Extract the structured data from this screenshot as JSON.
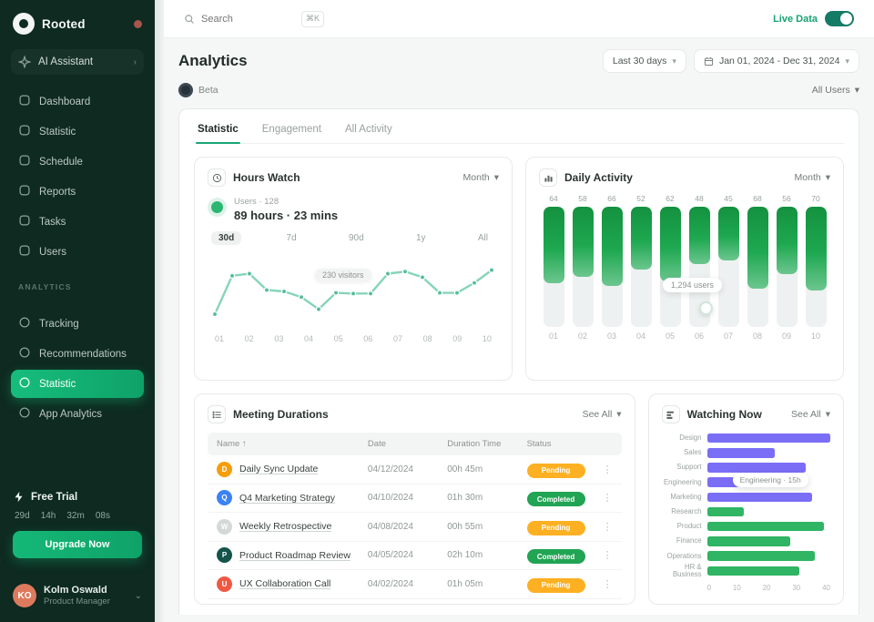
{
  "sidebar": {
    "logo": {
      "text": "Rooted"
    },
    "assistant": {
      "label": "AI Assistant",
      "tail": "›"
    },
    "nav": [
      {
        "label": "Dashboard"
      },
      {
        "label": "Statistic"
      },
      {
        "label": "Schedule"
      },
      {
        "label": "Reports"
      },
      {
        "label": "Tasks"
      },
      {
        "label": "Users"
      }
    ],
    "section_label": "ANALYTICS",
    "analytics_nav": [
      {
        "label": "Tracking",
        "active": false
      },
      {
        "label": "Recommendations",
        "active": false
      },
      {
        "label": "Statistic",
        "active": true
      },
      {
        "label": "App Analytics",
        "active": false
      }
    ],
    "trial": {
      "title": "Free Trial",
      "countdown": [
        "29d",
        "14h",
        "32m",
        "08s"
      ],
      "button": "Upgrade Now"
    },
    "profile": {
      "name": "Kolm Oswald",
      "role": "Product Manager",
      "initials": "KO"
    }
  },
  "topbar": {
    "search_placeholder": "Search",
    "search_shortcut": "⌘K",
    "live_label": "Live Data"
  },
  "header": {
    "title": "Analytics",
    "range_chip": "Last 30 days",
    "date_chip": "Jan 01, 2024 - Dec 31, 2024",
    "beta_chip": "Beta",
    "users_dropdown": "All Users"
  },
  "tabs": [
    {
      "label": "Statistic",
      "active": true
    },
    {
      "label": "Engagement",
      "active": false
    },
    {
      "label": "All Activity",
      "active": false
    }
  ],
  "chart_data": [
    {
      "id": "hours-watch",
      "type": "line",
      "title": "Hours Watch",
      "dropdown": "Month",
      "legend_label": "Users · 128",
      "legend_value": "89 hours · 23 mins",
      "periods": [
        "30d",
        "7d",
        "90d",
        "1y",
        "All"
      ],
      "active_period": "30d",
      "tooltip": "230 visitors",
      "x": [
        "01",
        "02",
        "03",
        "04",
        "05",
        "06",
        "07",
        "08",
        "09",
        "10"
      ],
      "values": [
        18,
        72,
        75,
        52,
        50,
        42,
        25,
        48,
        47,
        47,
        75,
        78,
        70,
        48,
        48,
        62,
        80
      ],
      "ylim": [
        0,
        100
      ],
      "line_color": "#86d4ba",
      "marker_color": "#55bd9c",
      "grid": false,
      "legend_position": "top-left"
    },
    {
      "id": "daily-activity",
      "type": "bar",
      "title": "Daily Activity",
      "dropdown": "Month",
      "tooltip": "1,294 users",
      "categories": [
        "01",
        "02",
        "03",
        "04",
        "05",
        "06",
        "07",
        "08",
        "09",
        "10"
      ],
      "values": [
        64,
        58,
        66,
        52,
        62,
        48,
        45,
        68,
        56,
        70
      ],
      "ylim": [
        0,
        100
      ],
      "bar_color": "#1fa04c",
      "track_color": "#eef1f1",
      "grid": false
    },
    {
      "id": "watching-now",
      "type": "hbar",
      "title": "Watching Now",
      "dropdown": "See All",
      "tooltip": "Engineering · 15h",
      "categories": [
        "Design",
        "Sales",
        "Support",
        "Engineering",
        "Marketing",
        "Research",
        "Product",
        "Finance",
        "Operations",
        "HR & Business"
      ],
      "values": [
        40,
        22,
        32,
        15,
        34,
        12,
        38,
        27,
        35,
        30
      ],
      "colors": [
        "#7b6ef6",
        "#7b6ef6",
        "#7b6ef6",
        "#7b6ef6",
        "#7b6ef6",
        "#2fb563",
        "#2fb563",
        "#2fb563",
        "#2fb563",
        "#2fb563"
      ],
      "xticks": [
        "0",
        "10",
        "20",
        "30",
        "40"
      ],
      "xlim": [
        0,
        40
      ],
      "grid": false
    }
  ],
  "table": {
    "title": "Meeting Durations",
    "dropdown": "See All",
    "columns": [
      "Name",
      "Date",
      "Duration Time",
      "Status"
    ],
    "sort_icon": "↑",
    "rows": [
      {
        "initial": "D",
        "avatar_color": "#f59e0b",
        "name": "Daily Sync Update",
        "date": "04/12/2024",
        "duration": "00h 45m",
        "status": "Pending",
        "status_color": "#fdb022"
      },
      {
        "initial": "Q",
        "avatar_color": "#3b82f6",
        "name": "Q4 Marketing Strategy",
        "date": "04/10/2024",
        "duration": "01h 30m",
        "status": "Completed",
        "status_color": "#21a453"
      },
      {
        "initial": "W",
        "avatar_color": "#d4d9d6",
        "name": "Weekly Retrospective",
        "date": "04/08/2024",
        "duration": "00h 55m",
        "status": "Pending",
        "status_color": "#fdb022"
      },
      {
        "initial": "P",
        "avatar_color": "#14544a",
        "name": "Product Roadmap Review",
        "date": "04/05/2024",
        "duration": "02h 10m",
        "status": "Completed",
        "status_color": "#21a453"
      },
      {
        "initial": "U",
        "avatar_color": "#ef5944",
        "name": "UX Collaboration Call",
        "date": "04/02/2024",
        "duration": "01h 05m",
        "status": "Pending",
        "status_color": "#fdb022"
      }
    ]
  }
}
